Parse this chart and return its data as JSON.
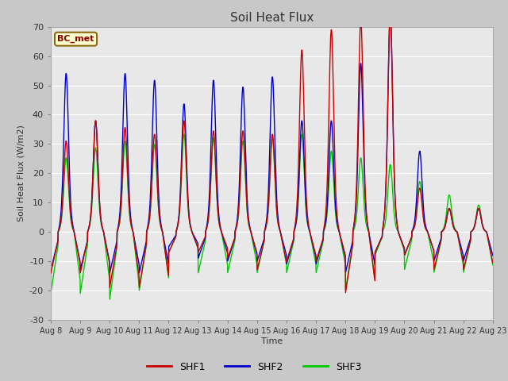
{
  "title": "Soil Heat Flux",
  "ylabel": "Soil Heat Flux (W/m2)",
  "xlabel": "Time",
  "ylim": [
    -30,
    70
  ],
  "fig_bg": "#c8c8c8",
  "plot_bg": "#e8e8e8",
  "grid_color": "#ffffff",
  "annotation_text": "BC_met",
  "annotation_bg": "#ffffcc",
  "annotation_border": "#8B6914",
  "series": {
    "SHF1": {
      "color": "#cc0000",
      "lw": 1.0
    },
    "SHF2": {
      "color": "#0000cc",
      "lw": 1.0
    },
    "SHF3": {
      "color": "#00cc00",
      "lw": 1.0
    }
  },
  "xtick_labels": [
    "Aug 8",
    "Aug 9",
    "Aug 10",
    "Aug 11",
    "Aug 12",
    "Aug 13",
    "Aug 14",
    "Aug 15",
    "Aug 16",
    "Aug 17",
    "Aug 18",
    "Aug 19",
    "Aug 20",
    "Aug 21",
    "Aug 22",
    "Aug 23"
  ],
  "ytick_labels": [
    -30,
    -20,
    -10,
    0,
    10,
    20,
    30,
    40,
    50,
    60,
    70
  ],
  "day_peaks_shf1": [
    27,
    33,
    31,
    29,
    33,
    30,
    30,
    29,
    54,
    60,
    63,
    65,
    13,
    7,
    7
  ],
  "night_mins_shf1": [
    -14,
    -14,
    -19,
    -19,
    -7,
    -7,
    -9,
    -13,
    -10,
    -10,
    -21,
    -7,
    -8,
    -13,
    -13
  ],
  "day_peaks_shf2": [
    47,
    33,
    47,
    45,
    38,
    45,
    43,
    46,
    33,
    33,
    50,
    65,
    24,
    7,
    7
  ],
  "night_mins_shf2": [
    -13,
    -13,
    -14,
    -14,
    -5,
    -9,
    -10,
    -10,
    -11,
    -11,
    -14,
    -7,
    -8,
    -10,
    -10
  ],
  "day_peaks_shf3": [
    22,
    25,
    27,
    26,
    29,
    28,
    27,
    28,
    29,
    24,
    22,
    20,
    15,
    11,
    8
  ],
  "night_mins_shf3": [
    -21,
    -21,
    -23,
    -20,
    -7,
    -14,
    -14,
    -14,
    -14,
    -14,
    -20,
    -8,
    -13,
    -14,
    -14
  ],
  "n_days": 15,
  "pts_per_day": 144
}
